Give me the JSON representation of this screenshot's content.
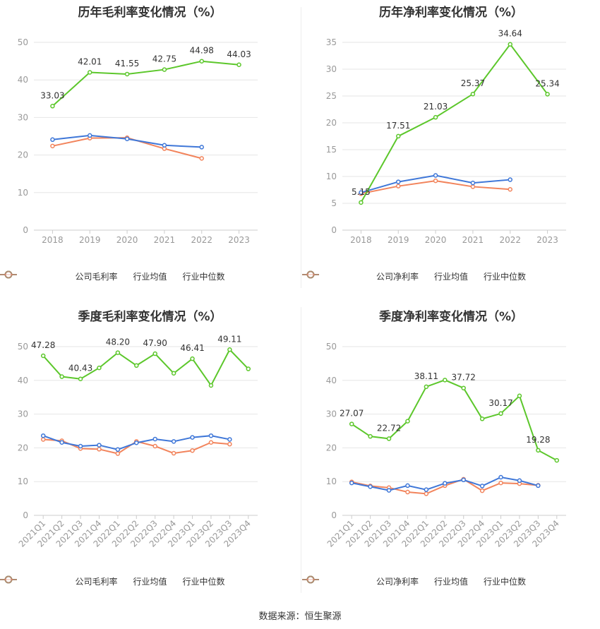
{
  "source_text": "数据来源：恒生聚源",
  "colors": {
    "company": "#5cc72b",
    "industry_avg": "#3f77d8",
    "industry_median": "#f2845c",
    "grid": "#e6e6e6",
    "axis_text": "#999999"
  },
  "chart_data": [
    {
      "type": "line",
      "title": "历年毛利率变化情况（%）",
      "categories": [
        "2018",
        "2019",
        "2020",
        "2021",
        "2022",
        "2023"
      ],
      "ylim": [
        0,
        50
      ],
      "yticks": [
        0,
        10,
        20,
        30,
        40,
        50
      ],
      "series": [
        {
          "name": "公司毛利率",
          "values": [
            33.03,
            42.01,
            41.55,
            42.75,
            44.98,
            44.03
          ],
          "labels": [
            true,
            true,
            true,
            true,
            true,
            true
          ]
        },
        {
          "name": "行业均值",
          "values": [
            24.1,
            25.2,
            24.3,
            22.6,
            22.1,
            null
          ]
        },
        {
          "name": "行业中位数",
          "values": [
            22.4,
            24.5,
            24.6,
            21.7,
            19.1,
            null
          ]
        }
      ]
    },
    {
      "type": "line",
      "title": "历年净利率变化情况（%）",
      "categories": [
        "2018",
        "2019",
        "2020",
        "2021",
        "2022",
        "2023"
      ],
      "ylim": [
        0,
        35
      ],
      "yticks": [
        0,
        5,
        10,
        15,
        20,
        25,
        30,
        35
      ],
      "series": [
        {
          "name": "公司净利率",
          "values": [
            5.15,
            17.51,
            21.03,
            25.37,
            34.64,
            25.34
          ],
          "labels": [
            true,
            true,
            true,
            true,
            true,
            true
          ]
        },
        {
          "name": "行业均值",
          "values": [
            7.0,
            9.0,
            10.2,
            8.8,
            9.4,
            null
          ]
        },
        {
          "name": "行业中位数",
          "values": [
            6.8,
            8.2,
            9.2,
            8.1,
            7.6,
            null
          ]
        }
      ]
    },
    {
      "type": "line",
      "title": "季度毛利率变化情况（%）",
      "categories": [
        "2021Q1",
        "2021Q2",
        "2021Q3",
        "2021Q4",
        "2022Q1",
        "2022Q2",
        "2022Q3",
        "2022Q4",
        "2023Q1",
        "2023Q2",
        "2023Q3",
        "2023Q4"
      ],
      "ylim": [
        0,
        50
      ],
      "yticks": [
        0,
        10,
        20,
        30,
        40,
        50
      ],
      "series": [
        {
          "name": "公司毛利率",
          "values": [
            47.28,
            41.1,
            40.43,
            43.7,
            48.2,
            44.4,
            47.9,
            42.1,
            46.41,
            38.5,
            49.11,
            43.4
          ],
          "labels": [
            true,
            false,
            true,
            false,
            true,
            false,
            true,
            false,
            true,
            false,
            true,
            false
          ]
        },
        {
          "name": "行业均值",
          "values": [
            23.6,
            21.6,
            20.5,
            20.8,
            19.5,
            21.5,
            22.6,
            21.9,
            23.1,
            23.6,
            22.5,
            null
          ]
        },
        {
          "name": "行业中位数",
          "values": [
            22.5,
            22.1,
            19.8,
            19.6,
            18.3,
            21.9,
            20.5,
            18.4,
            19.2,
            21.6,
            21.1,
            null
          ]
        }
      ]
    },
    {
      "type": "line",
      "title": "季度净利率变化情况（%）",
      "categories": [
        "2021Q1",
        "2021Q2",
        "2021Q3",
        "2021Q4",
        "2022Q1",
        "2022Q2",
        "2022Q3",
        "2022Q4",
        "2023Q1",
        "2023Q2",
        "2023Q3",
        "2023Q4"
      ],
      "ylim": [
        0,
        50
      ],
      "yticks": [
        0,
        10,
        20,
        30,
        40,
        50
      ],
      "series": [
        {
          "name": "公司净利率",
          "values": [
            27.07,
            23.4,
            22.72,
            27.9,
            38.11,
            40.1,
            37.72,
            28.6,
            30.17,
            35.4,
            19.28,
            16.3
          ],
          "labels": [
            true,
            false,
            true,
            false,
            true,
            false,
            true,
            false,
            true,
            false,
            true,
            false
          ]
        },
        {
          "name": "行业均值",
          "values": [
            9.6,
            8.5,
            7.4,
            8.8,
            7.6,
            9.5,
            10.5,
            8.7,
            11.3,
            10.3,
            8.8,
            null
          ]
        },
        {
          "name": "行业中位数",
          "values": [
            9.9,
            8.7,
            8.2,
            6.9,
            6.4,
            8.8,
            10.7,
            7.3,
            9.6,
            9.4,
            8.9,
            null
          ]
        }
      ]
    }
  ]
}
